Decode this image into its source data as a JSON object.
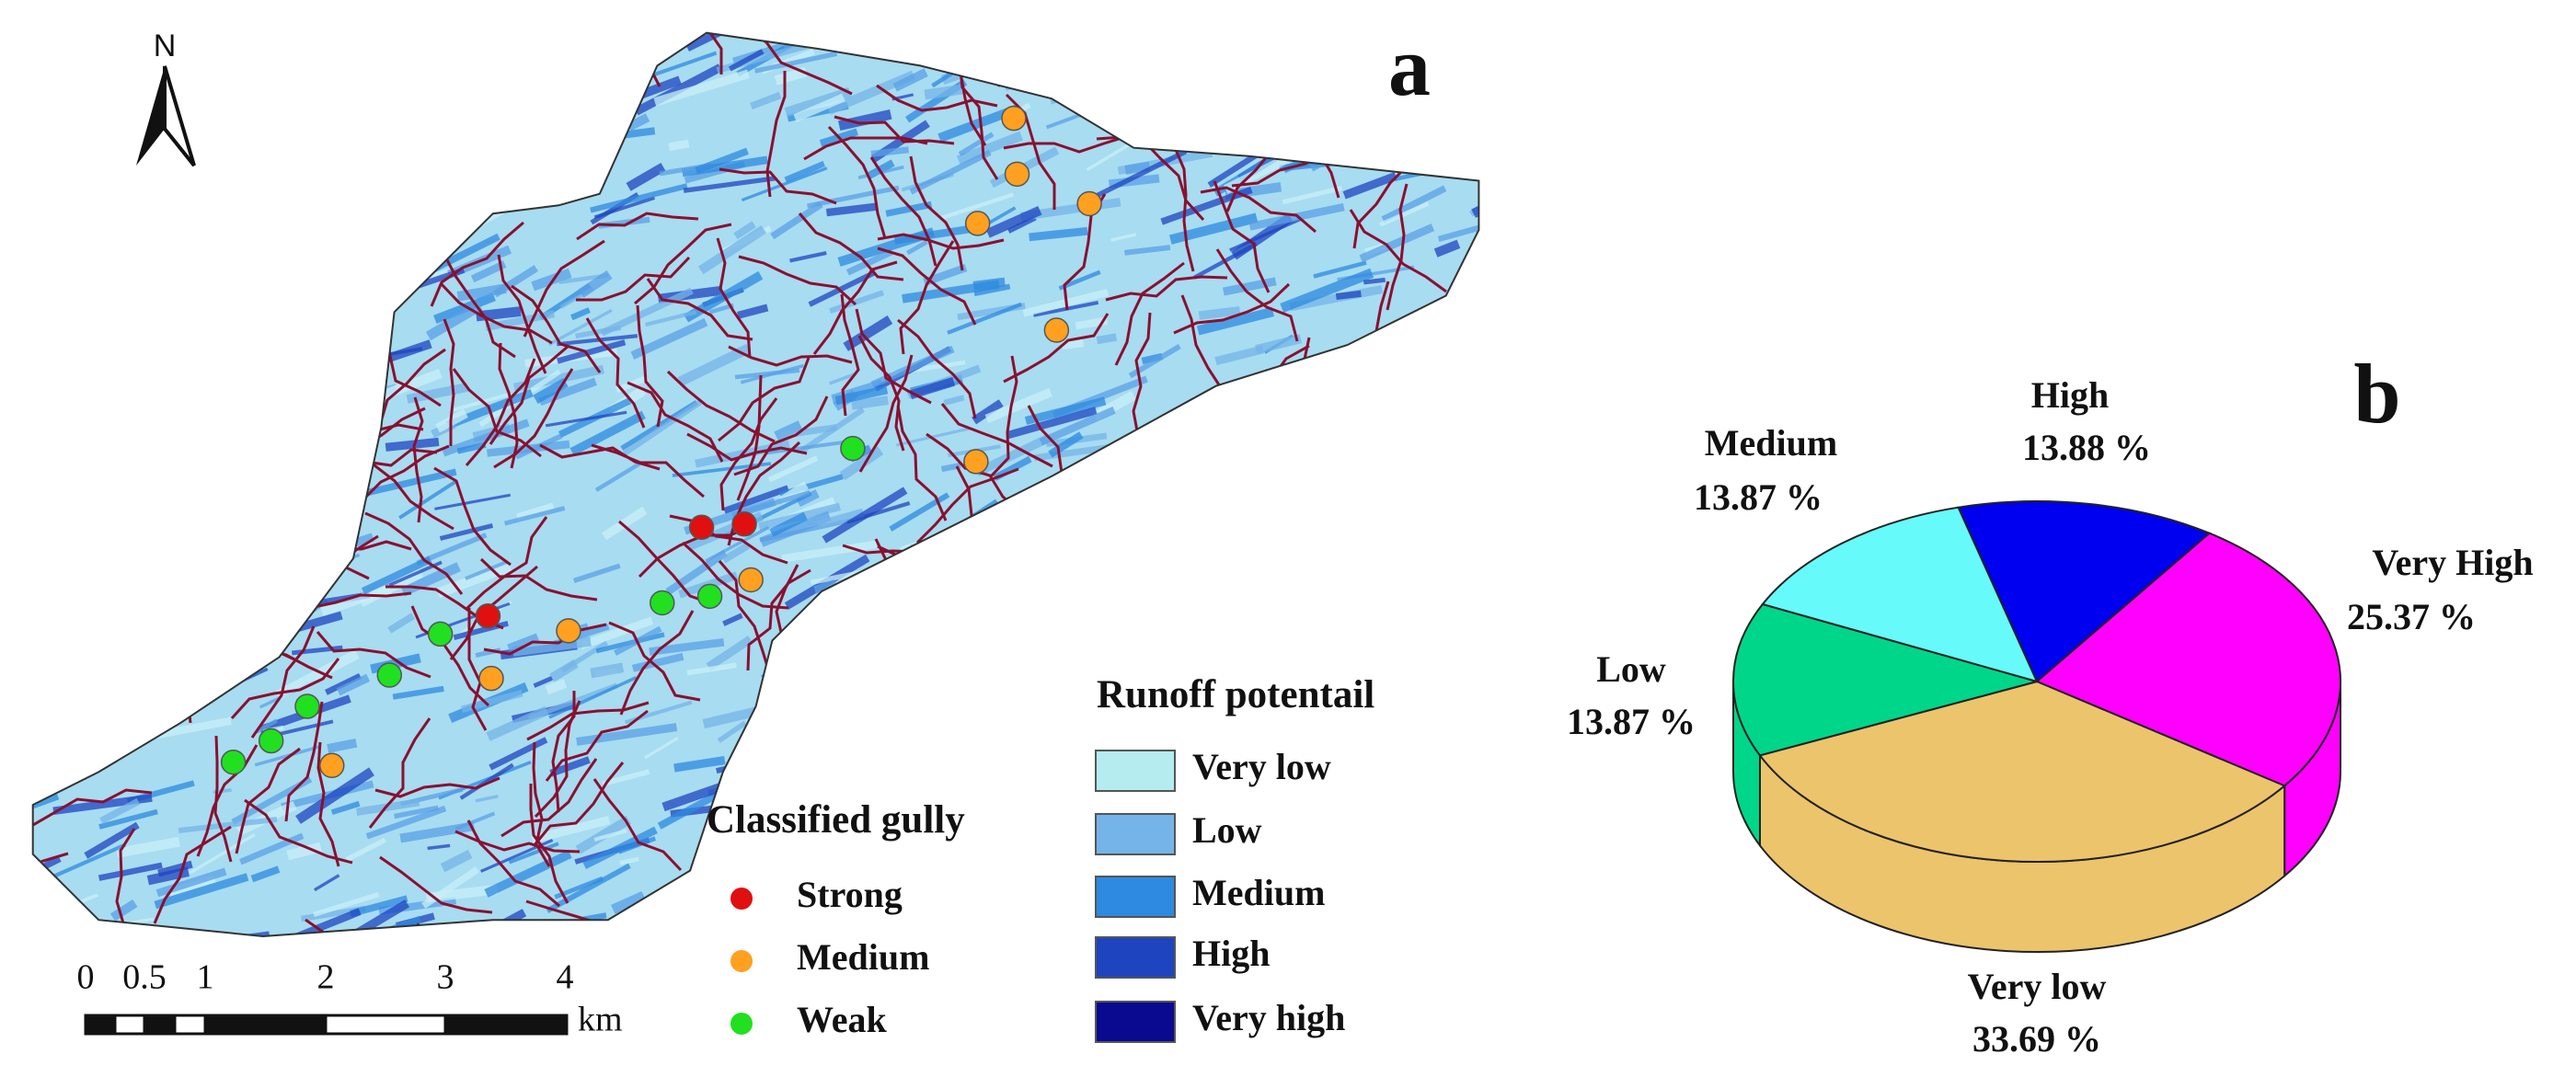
{
  "map": {
    "panel_label": "a",
    "north": "N",
    "gully_legend": {
      "title": "Classified gully",
      "items": [
        "Strong",
        "Medium",
        "Weak"
      ],
      "colors": [
        "#e01010",
        "#ffa020",
        "#20e020"
      ]
    },
    "runoff_legend": {
      "title": "Runoff potentail",
      "items": [
        "Very low",
        "Low",
        "Medium",
        "High",
        "Very high"
      ],
      "colors": [
        "#b4ecf0",
        "#74b4e8",
        "#2e8ae0",
        "#1e44c0",
        "#0a0a90"
      ]
    },
    "scale_bar": {
      "labels": [
        "0",
        "0.5",
        "1",
        "2",
        "3",
        "4"
      ],
      "unit": "km"
    }
  },
  "chart_data": {
    "type": "pie",
    "annotation": "b",
    "categories": [
      "High",
      "Very High",
      "Very low",
      "Low",
      "Medium"
    ],
    "values": [
      13.88,
      25.37,
      33.69,
      13.87,
      13.87
    ],
    "value_labels": [
      "13.88 %",
      "25.37 %",
      "33.69 %",
      "13.87 %",
      "13.87 %"
    ],
    "colors": [
      "#0000f0",
      "#ff00ff",
      "#ecc46c",
      "#00d68a",
      "#66fafa"
    ]
  }
}
